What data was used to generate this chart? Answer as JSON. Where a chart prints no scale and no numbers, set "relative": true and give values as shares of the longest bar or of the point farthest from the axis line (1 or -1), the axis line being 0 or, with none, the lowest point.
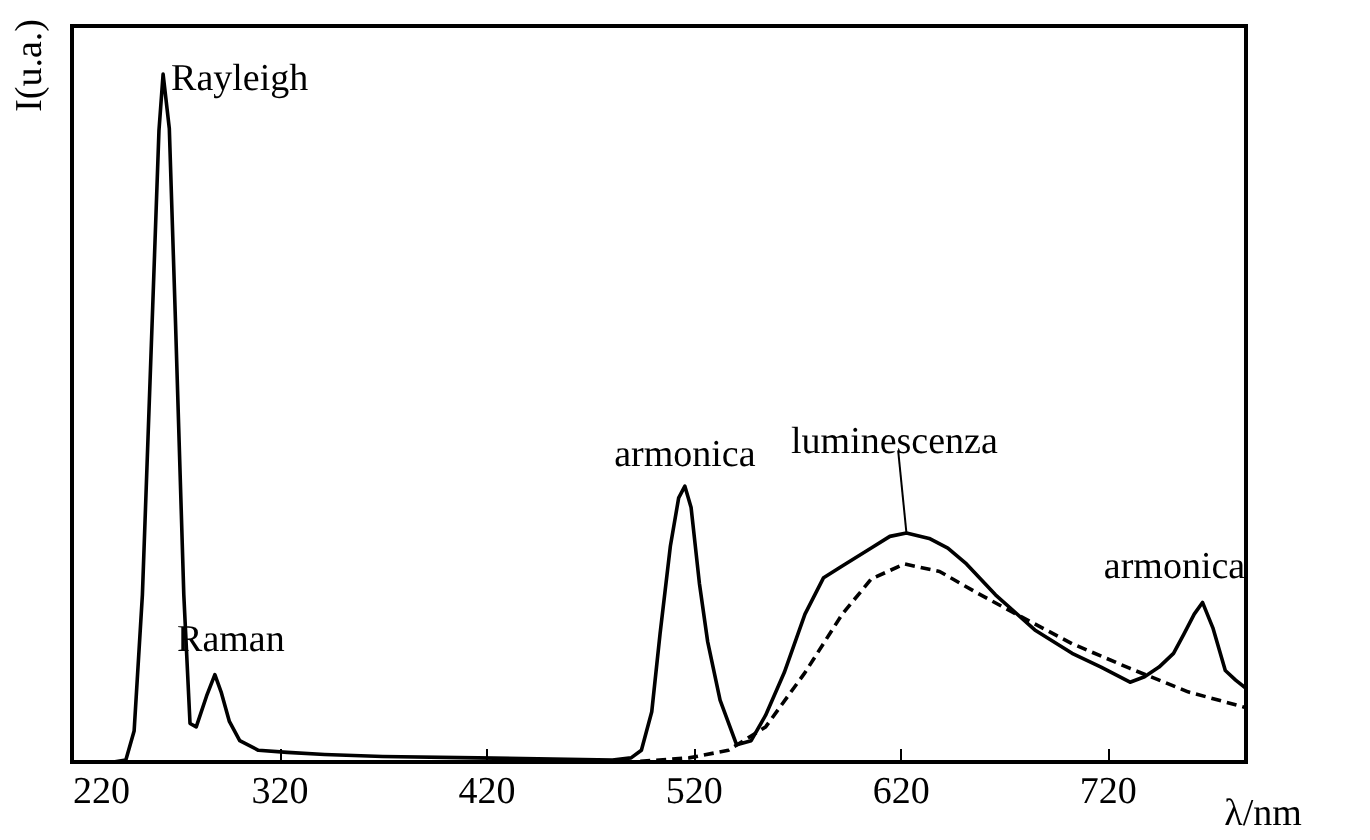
{
  "chart_data": {
    "type": "line",
    "relative": true,
    "ylabel": "I(u.a.)",
    "xlabel": "λ/nm",
    "xlim": [
      220,
      787
    ],
    "xticks": [
      220,
      320,
      420,
      520,
      620,
      720
    ],
    "grid": false,
    "marker": "none",
    "series": [
      {
        "color": "#000000",
        "line_style": "solid",
        "x": [
          224,
          240,
          246,
          250,
          254,
          259,
          262,
          264,
          267,
          270,
          274,
          277,
          280,
          285,
          289,
          292,
          296,
          301,
          310,
          324,
          342,
          370,
          416,
          481,
          490,
          495,
          500,
          504,
          509,
          513,
          516,
          519,
          523,
          527,
          533,
          541,
          548,
          555,
          564,
          574,
          583,
          592,
          606,
          615,
          623,
          634,
          643,
          652,
          666,
          685,
          703,
          717,
          731,
          738,
          745,
          752,
          757,
          762,
          766,
          771,
          777,
          782,
          787
        ],
        "values": [
          0,
          0,
          0.003,
          0.045,
          0.243,
          0.664,
          0.918,
          1,
          0.921,
          0.638,
          0.243,
          0.056,
          0.051,
          0.096,
          0.127,
          0.102,
          0.059,
          0.031,
          0.017,
          0.014,
          0.011,
          0.008,
          0.006,
          0.003,
          0.006,
          0.017,
          0.073,
          0.186,
          0.314,
          0.384,
          0.401,
          0.37,
          0.26,
          0.175,
          0.09,
          0.025,
          0.031,
          0.068,
          0.13,
          0.215,
          0.268,
          0.285,
          0.311,
          0.328,
          0.333,
          0.325,
          0.311,
          0.288,
          0.243,
          0.192,
          0.158,
          0.138,
          0.116,
          0.124,
          0.138,
          0.158,
          0.186,
          0.215,
          0.232,
          0.195,
          0.133,
          0.119,
          0.107
        ]
      },
      {
        "color": "#000000",
        "line_style": "dashed",
        "x": [
          224,
          490,
          518,
          537,
          555,
          574,
          592,
          606,
          622,
          639,
          657,
          676,
          703,
          731,
          759,
          787
        ],
        "values": [
          0,
          0,
          0.006,
          0.017,
          0.051,
          0.13,
          0.215,
          0.266,
          0.288,
          0.277,
          0.246,
          0.215,
          0.172,
          0.136,
          0.102,
          0.079
        ]
      }
    ],
    "annotations": [
      {
        "text": "Rayleigh",
        "x": 264,
        "y": 1
      },
      {
        "text": "Raman",
        "x": 289,
        "y": 0.127
      },
      {
        "text": "armonica",
        "x": 516,
        "y": 0.401
      },
      {
        "text": "luminescenza",
        "x": 623,
        "y": 0.333
      },
      {
        "text": "armonica",
        "x": 766,
        "y": 0.232
      }
    ]
  }
}
